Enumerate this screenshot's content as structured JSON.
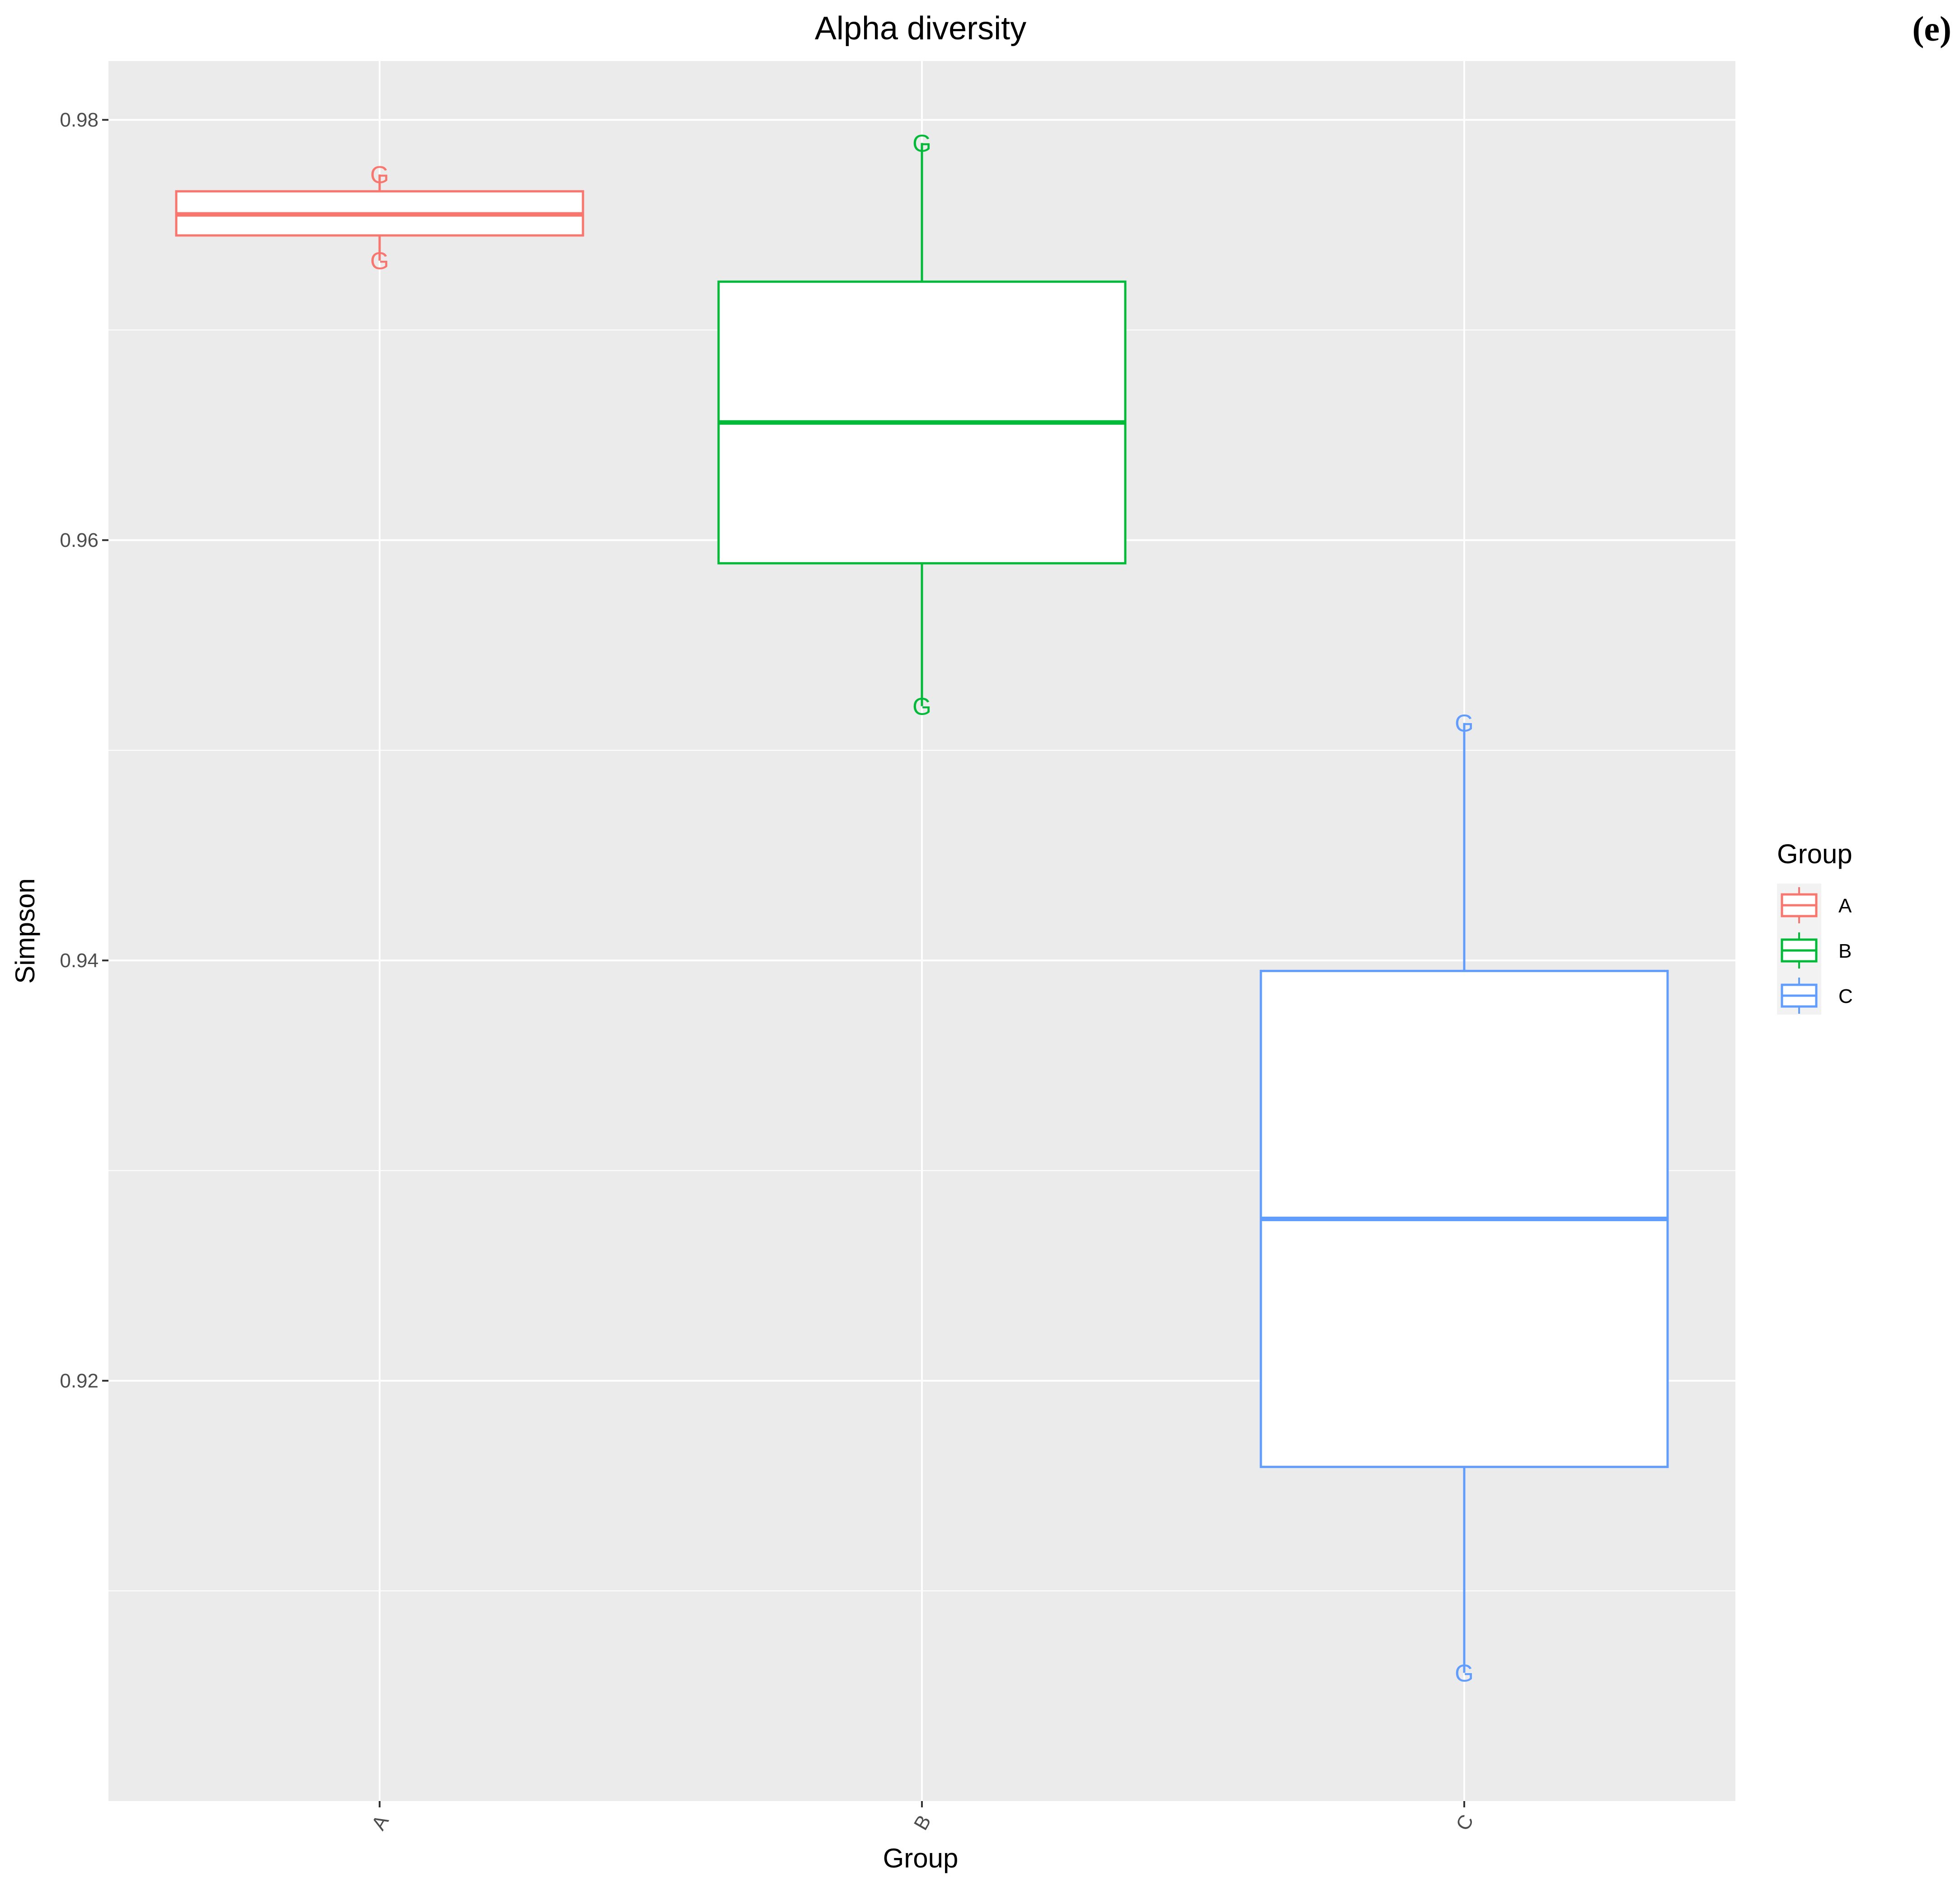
{
  "panel_label": "(e)",
  "chart_data": {
    "type": "boxplot",
    "title": "Alpha diversity",
    "xlabel": "Group",
    "ylabel": "Simpson",
    "categories": [
      "A",
      "B",
      "C"
    ],
    "ylim": [
      0.9,
      0.9828
    ],
    "yticks": [
      "0.92",
      "0.94",
      "0.96",
      "0.98"
    ],
    "grid": true,
    "legend": {
      "title": "Group",
      "position": "right",
      "entries": [
        "A",
        "B",
        "C"
      ]
    },
    "point_glyph": "G",
    "series": [
      {
        "name": "A",
        "color": "#F8766D",
        "min": 0.9733,
        "q1": 0.9745,
        "median": 0.9755,
        "q3": 0.9766,
        "max": 0.9774,
        "points": [
          0.9774,
          0.9733
        ]
      },
      {
        "name": "B",
        "color": "#00BA38",
        "min": 0.9521,
        "q1": 0.9589,
        "median": 0.9656,
        "q3": 0.9723,
        "max": 0.9789,
        "points": [
          0.9789,
          0.9521
        ]
      },
      {
        "name": "C",
        "color": "#619CFF",
        "min": 0.9061,
        "q1": 0.9159,
        "median": 0.9277,
        "q3": 0.9395,
        "max": 0.9513,
        "points": [
          0.9513,
          0.9061
        ]
      }
    ]
  }
}
